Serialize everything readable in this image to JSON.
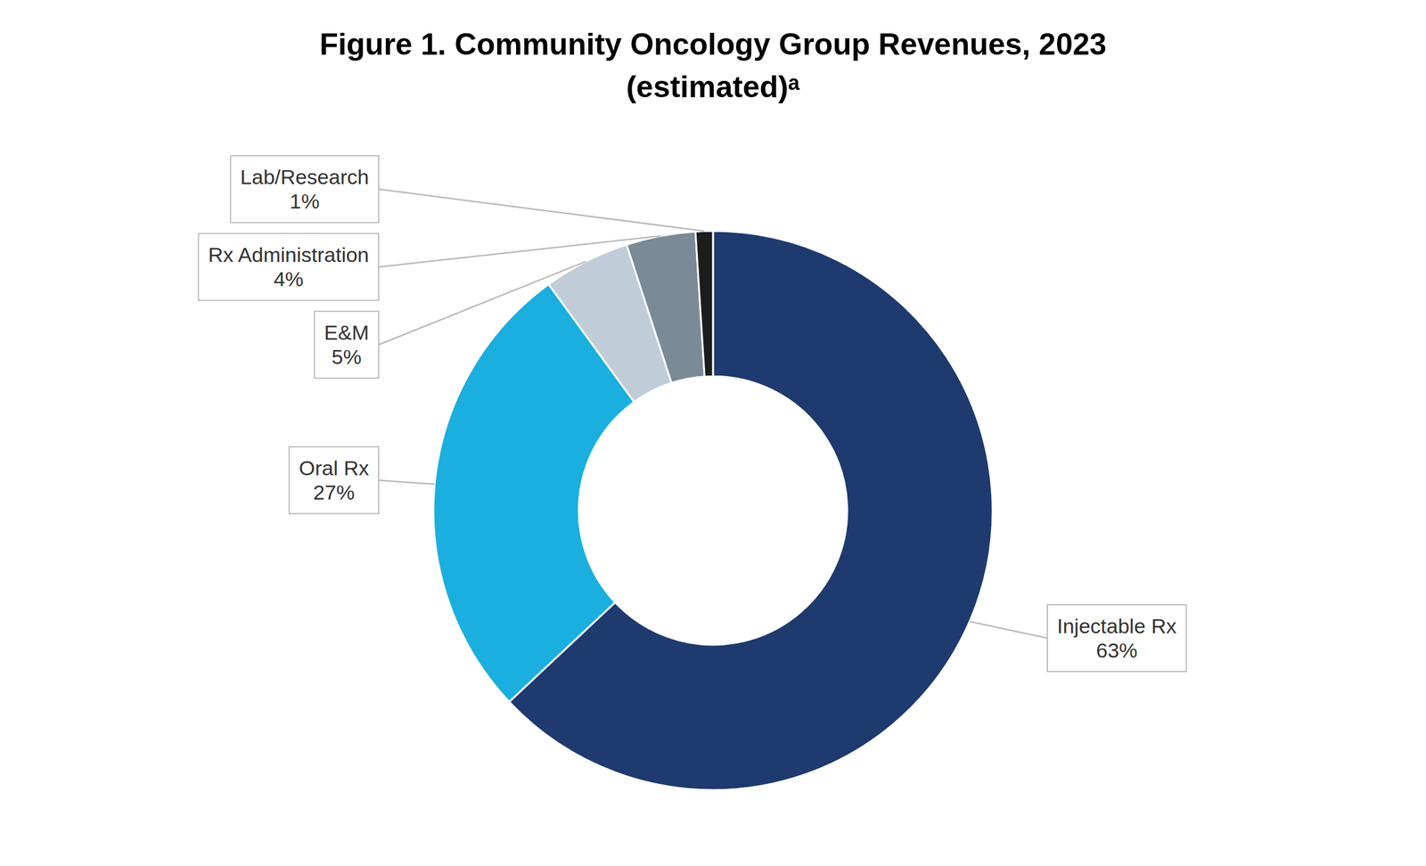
{
  "chart_data": {
    "type": "donut",
    "title": "Figure 1. Community Oncology Group Revenues, 2023",
    "subtitle": "(estimated)ᵃ",
    "categories": [
      "Injectable Rx",
      "Oral Rx",
      "E&M",
      "Rx Administration",
      "Lab/Research"
    ],
    "values": [
      63,
      27,
      5,
      4,
      1
    ],
    "value_labels": [
      "63%",
      "27%",
      "5%",
      "4%",
      "1%"
    ],
    "colors": [
      "#1e3a6e",
      "#1aafdf",
      "#c0cdd8",
      "#7a8a96",
      "#1c1c1c"
    ],
    "data_labels": true
  }
}
